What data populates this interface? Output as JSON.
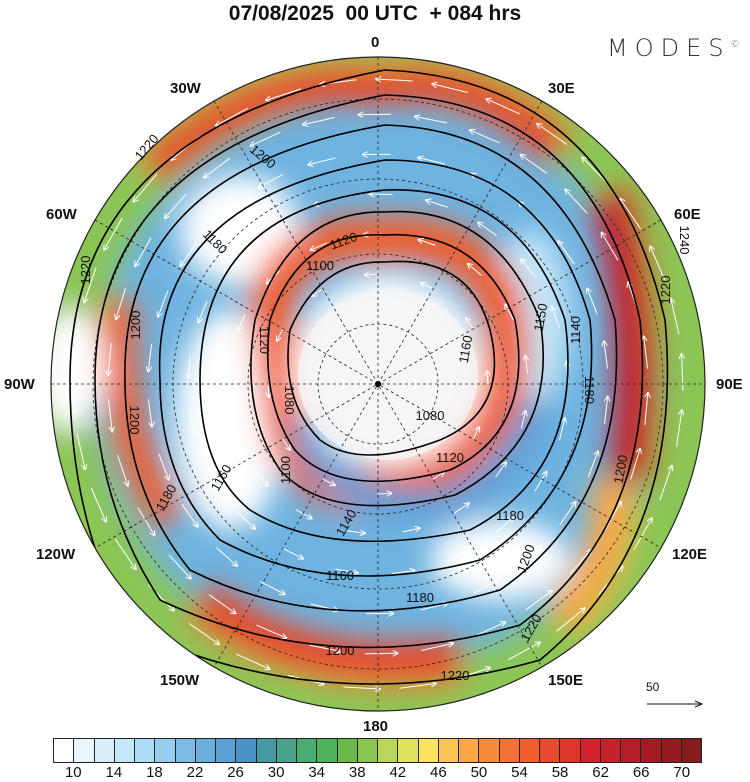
{
  "title": "07/08/2025  00 UTC  + 084 hrs",
  "logo": "MODES",
  "logo_mark": "©",
  "longitude_labels": {
    "lon0": "0",
    "lon30e": "30E",
    "lon60e": "60E",
    "lon90e": "90E",
    "lon120e": "120E",
    "lon150e": "150E",
    "lon180": "180",
    "lon150w": "150W",
    "lon120w": "120W",
    "lon90w": "90W",
    "lon60w": "60W",
    "lon30w": "30W"
  },
  "contour_labels": [
    "1220",
    "1200",
    "1120",
    "1100",
    "1180",
    "1220",
    "1200",
    "1120",
    "1080",
    "1160",
    "1180",
    "1200",
    "1100",
    "1080",
    "1160",
    "1140",
    "1160",
    "1180",
    "1120",
    "1140",
    "1180",
    "1200",
    "1220",
    "1240",
    "1150",
    "1200",
    "1220",
    "1200",
    "1220",
    "1180"
  ],
  "vector_reference": "50",
  "colorbar": {
    "ticks": [
      "10",
      "14",
      "18",
      "22",
      "26",
      "30",
      "34",
      "38",
      "42",
      "46",
      "50",
      "54",
      "58",
      "62",
      "66",
      "70"
    ],
    "colors": [
      "#ffffff",
      "#eaf6fd",
      "#d8effb",
      "#c4e7f9",
      "#addcf6",
      "#95cdef",
      "#7dbbe6",
      "#6aaedd",
      "#5a9ed6",
      "#4a92c8",
      "#4799a6",
      "#49a48b",
      "#4aac72",
      "#4db25a",
      "#68bb4b",
      "#8bc654",
      "#b8d75a",
      "#e1e25c",
      "#fbe35e",
      "#fcc453",
      "#fba746",
      "#f88b3c",
      "#f57133",
      "#f05e2e",
      "#e74a2c",
      "#de352b",
      "#d0232b",
      "#c4232b",
      "#b21f27",
      "#a41c23",
      "#951b20",
      "#871a1d"
    ]
  }
}
